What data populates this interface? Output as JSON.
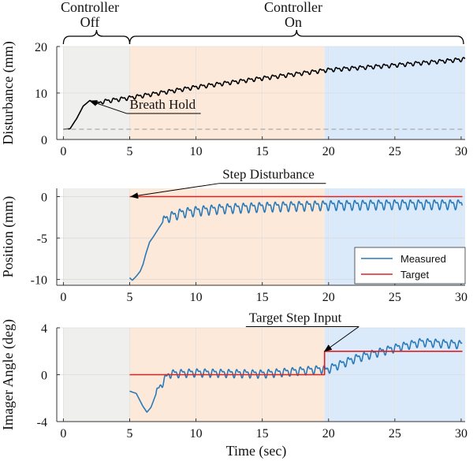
{
  "figure": {
    "xlabel": "Time (sec)",
    "headers": {
      "off_line1": "Controller",
      "off_line2": "Off",
      "on_line1": "Controller",
      "on_line2": "On"
    },
    "region_colors": {
      "off": "#efefed",
      "on_mid": "#fde9d9",
      "on_late": "#dbeafb"
    },
    "region_bounds": {
      "off": [
        0,
        5
      ],
      "on_mid": [
        5,
        19.7
      ],
      "on_late": [
        19.7,
        30.3
      ]
    },
    "line_colors": {
      "disturbance": "#000000",
      "baseline": "#aaaaaa",
      "measured": "#2a7ab8",
      "target": "#e02020"
    }
  },
  "chart_data": [
    {
      "type": "line",
      "panel": "disturbance",
      "ylabel": "Disturbance (mm)",
      "xlim": [
        -0.5,
        30.3
      ],
      "ylim": [
        0,
        20
      ],
      "xticks": [
        0,
        5,
        10,
        15,
        20,
        25,
        30
      ],
      "xtick_labels": [
        "0",
        "5",
        "10",
        "15",
        "20",
        "25",
        "30"
      ],
      "yticks": [
        0,
        10,
        20
      ],
      "ytick_labels": [
        "0",
        "10",
        "20"
      ],
      "grid": true,
      "series": [
        {
          "name": "Disturbance",
          "color": "#000000",
          "x": [
            0,
            0.5,
            1.0,
            1.5,
            2.0,
            2.5,
            3,
            5,
            10,
            15,
            20,
            25,
            30.3
          ],
          "y": [
            2.2,
            2.3,
            4.5,
            7.2,
            8.4,
            7.6,
            8.2,
            9.0,
            11.3,
            13.2,
            15.0,
            16.0,
            17.3
          ],
          "ripple_amplitude": 0.55,
          "ripple_period_sec": 0.6,
          "ripple_start_sec": 2.5
        },
        {
          "name": "Baseline",
          "color": "#aaaaaa",
          "dashed": true,
          "x": [
            0,
            30.3
          ],
          "y": [
            2.2,
            2.2
          ]
        }
      ],
      "annotations": [
        {
          "text": "Breath Hold",
          "arrow_to": [
            2.0,
            8.3
          ],
          "text_at": [
            5.0,
            5.6
          ]
        }
      ]
    },
    {
      "type": "line",
      "panel": "position",
      "ylabel": "Position (mm)",
      "xlim": [
        -0.5,
        30.3
      ],
      "ylim": [
        -10.7,
        1.0
      ],
      "xticks": [
        0,
        5,
        10,
        15,
        20,
        25,
        30
      ],
      "xtick_labels": [
        "0",
        "5",
        "10",
        "15",
        "20",
        "25",
        "30"
      ],
      "yticks": [
        0,
        -5,
        -10
      ],
      "ytick_labels": [
        "0",
        "-5",
        "-10"
      ],
      "grid": true,
      "series": [
        {
          "name": "Measured",
          "color": "#2a7ab8",
          "x": [
            5.0,
            5.2,
            5.5,
            5.8,
            6.0,
            6.2,
            6.5,
            6.8,
            7.2,
            7.6,
            8,
            9,
            10,
            12,
            15,
            20,
            25,
            30.1
          ],
          "y": [
            -9.8,
            -10.1,
            -9.6,
            -9.0,
            -8.2,
            -7.0,
            -5.5,
            -4.8,
            -3.8,
            -2.8,
            -2.4,
            -1.9,
            -1.7,
            -1.4,
            -1.2,
            -1.0,
            -0.9,
            -0.9
          ],
          "ripple_amplitude": 0.75,
          "ripple_period_sec": 0.6,
          "ripple_start_sec": 7.5
        },
        {
          "name": "Target",
          "color": "#e02020",
          "x": [
            5.0,
            30.1
          ],
          "y": [
            0,
            0
          ]
        }
      ],
      "legend": {
        "entries": [
          "Measured",
          "Target"
        ],
        "placement": "bottom-right"
      },
      "annotations": [
        {
          "text": "Step Disturbance",
          "arrow_to": [
            5.1,
            0.0
          ],
          "text_at": [
            12.0,
            1.6
          ]
        }
      ]
    },
    {
      "type": "line",
      "panel": "imager_angle",
      "ylabel": "Imager Angle (deg)",
      "xlim": [
        -0.5,
        30.3
      ],
      "ylim": [
        -4,
        4
      ],
      "xticks": [
        0,
        5,
        10,
        15,
        20,
        25,
        30
      ],
      "xtick_labels": [
        "0",
        "5",
        "10",
        "15",
        "20",
        "25",
        "30"
      ],
      "yticks": [
        4,
        0,
        -4
      ],
      "ytick_labels": [
        "4",
        "0",
        "-4"
      ],
      "grid": true,
      "series": [
        {
          "name": "Measured",
          "color": "#2a7ab8",
          "x": [
            5.0,
            5.5,
            6.0,
            6.3,
            6.6,
            7.0,
            7.5,
            8,
            10,
            15,
            19.6,
            19.8,
            20.2,
            22,
            25,
            27,
            30.1
          ],
          "y": [
            -1.4,
            -1.6,
            -2.7,
            -3.2,
            -2.8,
            -1.6,
            -0.6,
            0.1,
            0.2,
            0.1,
            0.5,
            0.4,
            0.6,
            1.4,
            2.3,
            2.8,
            2.6
          ],
          "ripple_amplitude": 0.45,
          "ripple_period_sec": 0.6,
          "ripple_start_sec": 7.0
        },
        {
          "name": "Target",
          "color": "#e02020",
          "x": [
            5.0,
            19.7,
            19.7,
            30.1
          ],
          "y": [
            0,
            0,
            2,
            2
          ]
        }
      ],
      "annotations": [
        {
          "text": "Target Step Input",
          "arrow_to": [
            19.7,
            2.0
          ],
          "text_at": [
            14.0,
            4.1
          ]
        }
      ]
    }
  ]
}
